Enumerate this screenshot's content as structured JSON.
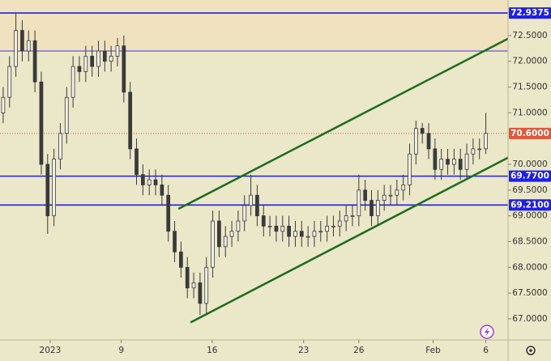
{
  "chart_data": {
    "type": "candlestick",
    "xlim": [
      -0.5,
      79.5
    ],
    "ylim": [
      66.59,
      73.19
    ],
    "yticks": [
      {
        "value": 67,
        "label": "67.0000"
      },
      {
        "value": 67.5,
        "label": "67.5000"
      },
      {
        "value": 68,
        "label": "68.0000"
      },
      {
        "value": 68.5,
        "label": "68.5000"
      },
      {
        "value": 69,
        "label": "69.0000"
      },
      {
        "value": 69.5,
        "label": "69.5000"
      },
      {
        "value": 70,
        "label": "70.0000"
      },
      {
        "value": 71,
        "label": "71.0000"
      },
      {
        "value": 71.5,
        "label": "71.5000"
      },
      {
        "value": 72,
        "label": "72.0000"
      },
      {
        "value": 72.5,
        "label": "72.5000"
      }
    ],
    "xticks": [
      {
        "value": 7.4,
        "label": "2023"
      },
      {
        "value": 18.6,
        "label": "9"
      },
      {
        "value": 32.9,
        "label": "16"
      },
      {
        "value": 47.3,
        "label": "23"
      },
      {
        "value": 56,
        "label": "26"
      },
      {
        "value": 67.7,
        "label": "Feb"
      },
      {
        "value": 76,
        "label": "6"
      }
    ],
    "up_color": "#f4f2e6",
    "down_color": "#3a3a3a",
    "wick_color": "#3a3a3a",
    "open": [
      71.0,
      71.3,
      71.9,
      72.6,
      72.2,
      72.4,
      71.6,
      70.0,
      69.0,
      70.1,
      70.6,
      71.3,
      71.9,
      71.8,
      72.1,
      71.9,
      72.2,
      72.0,
      72.1,
      72.3,
      71.4,
      70.3,
      69.8,
      69.6,
      69.7,
      69.6,
      69.4,
      68.7,
      68.3,
      68.0,
      67.6,
      67.7,
      67.3,
      68.0,
      68.9,
      68.4,
      68.6,
      68.7,
      68.9,
      69.2,
      69.4,
      69.0,
      68.8,
      68.8,
      68.7,
      68.8,
      68.6,
      68.7,
      68.6,
      68.6,
      68.7,
      68.7,
      68.8,
      68.8,
      68.9,
      69.0,
      69.0,
      69.5,
      69.3,
      69.0,
      69.3,
      69.4,
      69.4,
      69.5,
      69.6,
      70.2,
      70.7,
      70.6,
      70.3,
      69.9,
      70.1,
      70.0,
      70.1,
      69.9,
      70.2,
      70.3,
      70.3
    ],
    "high": [
      71.5,
      72.1,
      72.95,
      72.8,
      72.6,
      72.6,
      71.8,
      70.2,
      70.3,
      70.8,
      71.5,
      72.1,
      72.1,
      72.3,
      72.3,
      72.4,
      72.4,
      72.3,
      72.45,
      72.5,
      71.6,
      70.5,
      70.0,
      69.9,
      69.9,
      69.8,
      69.6,
      68.9,
      68.5,
      68.2,
      67.9,
      67.9,
      68.2,
      69.1,
      69.1,
      68.8,
      68.9,
      69.1,
      69.4,
      69.8,
      69.6,
      69.2,
      69.0,
      69.0,
      69.0,
      69.0,
      68.9,
      68.9,
      68.8,
      68.9,
      68.9,
      69.0,
      69.0,
      69.1,
      69.2,
      69.2,
      69.8,
      69.7,
      69.5,
      69.5,
      69.6,
      69.6,
      69.7,
      69.8,
      70.4,
      70.85,
      70.8,
      70.8,
      70.5,
      70.3,
      70.3,
      70.3,
      70.3,
      70.4,
      70.5,
      70.5,
      71.0
    ],
    "low": [
      70.8,
      71.1,
      71.7,
      72.0,
      72.0,
      71.4,
      69.8,
      68.65,
      68.8,
      69.9,
      70.4,
      71.1,
      71.6,
      71.6,
      71.7,
      71.7,
      71.8,
      71.8,
      71.9,
      71.2,
      70.1,
      69.6,
      69.4,
      69.4,
      69.4,
      69.2,
      68.5,
      68.1,
      67.8,
      67.4,
      67.4,
      67.08,
      67.1,
      67.8,
      68.2,
      68.2,
      68.4,
      68.5,
      68.7,
      69.0,
      68.8,
      68.6,
      68.6,
      68.5,
      68.5,
      68.4,
      68.4,
      68.4,
      68.4,
      68.4,
      68.5,
      68.5,
      68.6,
      68.6,
      68.7,
      68.8,
      68.8,
      69.1,
      68.8,
      68.8,
      69.1,
      69.2,
      69.2,
      69.3,
      69.4,
      70.0,
      70.4,
      70.1,
      69.7,
      69.7,
      69.8,
      69.8,
      69.7,
      69.7,
      70.0,
      70.1,
      70.2
    ],
    "close": [
      71.3,
      71.9,
      72.6,
      72.2,
      72.4,
      71.6,
      70.0,
      69.0,
      70.1,
      70.6,
      71.3,
      71.9,
      71.8,
      72.1,
      71.9,
      72.2,
      72.0,
      72.1,
      72.3,
      71.4,
      70.3,
      69.8,
      69.6,
      69.7,
      69.6,
      69.4,
      68.7,
      68.3,
      68.0,
      67.6,
      67.7,
      67.3,
      68.0,
      68.9,
      68.4,
      68.6,
      68.7,
      68.9,
      69.2,
      69.4,
      69.0,
      68.8,
      68.8,
      68.7,
      68.8,
      68.6,
      68.7,
      68.6,
      68.6,
      68.7,
      68.7,
      68.8,
      68.8,
      68.9,
      69.0,
      69.0,
      69.5,
      69.3,
      69.0,
      69.3,
      69.4,
      69.4,
      69.5,
      69.6,
      70.2,
      70.7,
      70.6,
      70.3,
      69.9,
      70.1,
      70.0,
      70.1,
      69.9,
      70.2,
      70.3,
      70.3,
      70.6
    ],
    "levels": [
      {
        "value": 72.9375,
        "color": "#1f1fe8"
      },
      {
        "value": 72.2,
        "color": "#3a3ad8"
      },
      {
        "value": 69.77,
        "label": "69.7700",
        "color": "#1f1fe8"
      },
      {
        "value": 69.21,
        "label": "69.2100",
        "color": "#1f1fe8"
      }
    ],
    "last": {
      "value": 70.6,
      "label": "70.6000",
      "color": "#e0573a"
    },
    "trendlines": [
      {
        "x": [
          27.6,
          79.5
        ],
        "values": [
          69.135,
          72.44
        ],
        "color": "#1e6b1e"
      },
      {
        "x": [
          29.5,
          79.5
        ],
        "values": [
          66.93,
          70.13
        ],
        "color": "#1e6b1e"
      }
    ]
  }
}
